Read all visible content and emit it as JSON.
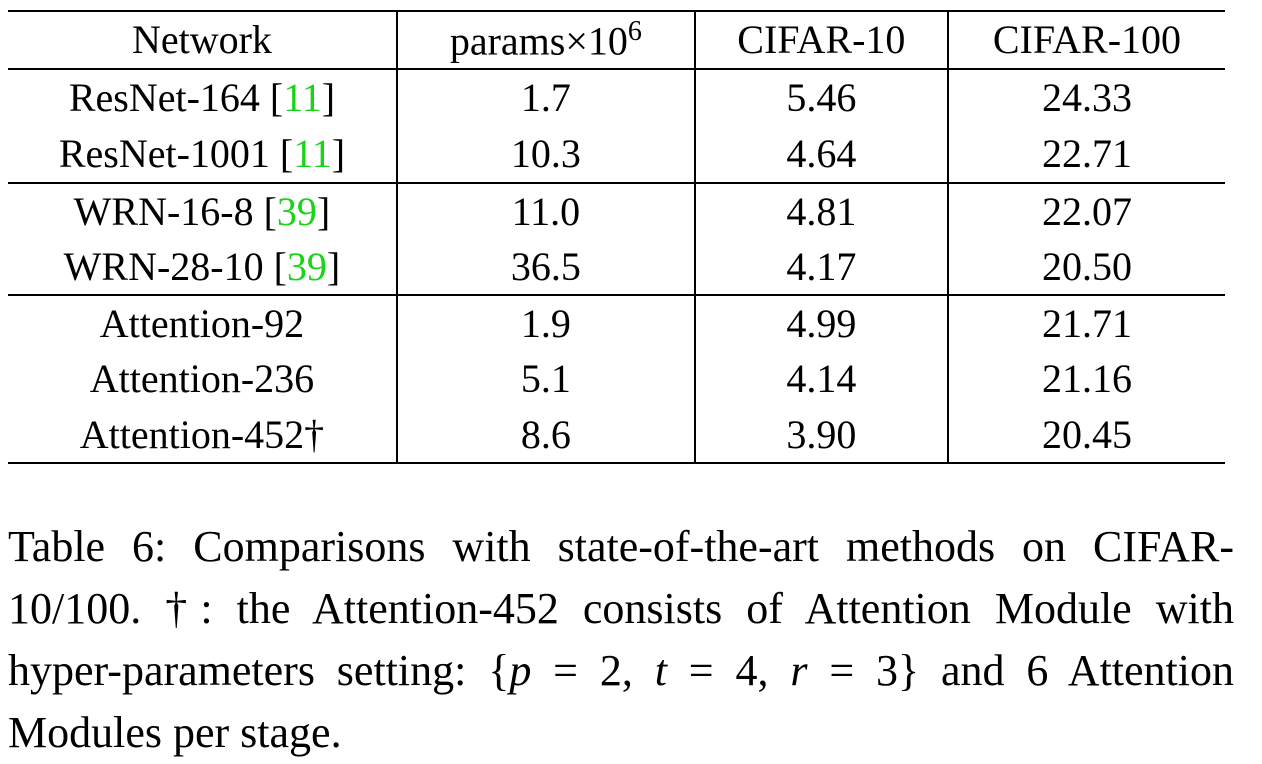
{
  "table": {
    "headers": {
      "network": "Network",
      "params_base": "params",
      "params_times": "×10",
      "params_exp": "6",
      "cifar10": "CIFAR-10",
      "cifar100": "CIFAR-100"
    },
    "groups": [
      [
        {
          "name": "ResNet-164 [",
          "cite": "11",
          "close": "]",
          "params": "1.7",
          "cifar10": "5.46",
          "cifar100": "24.33"
        },
        {
          "name": "ResNet-1001 [",
          "cite": "11",
          "close": "]",
          "params": "10.3",
          "cifar10": "4.64",
          "cifar100": "22.71"
        }
      ],
      [
        {
          "name": "WRN-16-8 [",
          "cite": "39",
          "close": "]",
          "params": "11.0",
          "cifar10": "4.81",
          "cifar100": "22.07"
        },
        {
          "name": "WRN-28-10 [",
          "cite": "39",
          "close": "]",
          "params": "36.5",
          "cifar10": "4.17",
          "cifar100": "20.50"
        }
      ],
      [
        {
          "name": "Attention-92",
          "params": "1.9",
          "cifar10": "4.99",
          "cifar100": "21.71"
        },
        {
          "name": "Attention-236",
          "params": "5.1",
          "cifar10": "4.14",
          "cifar100": "21.16"
        },
        {
          "name": "Attention-452†",
          "params": "8.6",
          "cifar10": "3.90",
          "cifar100": "20.45"
        }
      ]
    ]
  },
  "caption": {
    "part1": "Table 6:  Comparisons with state-of-the-art methods on CIFAR-10/100. †: the Attention-452 consists of Attention Module with hyper-parameters setting: {",
    "p": "p",
    "p_eq": " = 2, ",
    "t": "t",
    "t_eq": " = 4, ",
    "r": "r",
    "r_eq": " = 3}",
    "part2": " and 6 Attention Modules per stage."
  }
}
